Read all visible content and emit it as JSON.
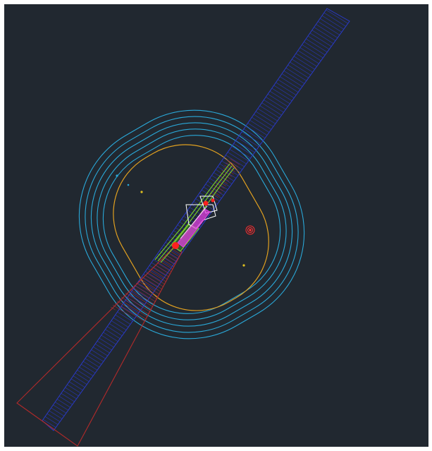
{
  "viewport": {
    "background_color": "#212830",
    "frame_color": "#ffffff"
  },
  "layers": {
    "runway_hatch": {
      "color": "#1f2a9a",
      "fill": "#1a2aa8"
    },
    "approach_surface": {
      "color": "#b22a2a"
    },
    "taxiway": {
      "color": "#7ad12a"
    },
    "apron": {
      "color": "#e040e0"
    },
    "building": {
      "color": "#ffffff"
    },
    "marker": {
      "color": "#ff2020"
    },
    "boundary_contours": {
      "color": "#2aa8d8"
    },
    "inner_boundary": {
      "color": "#e0a020"
    }
  },
  "icons": {
    "reference_point": "target-circle-icon"
  }
}
